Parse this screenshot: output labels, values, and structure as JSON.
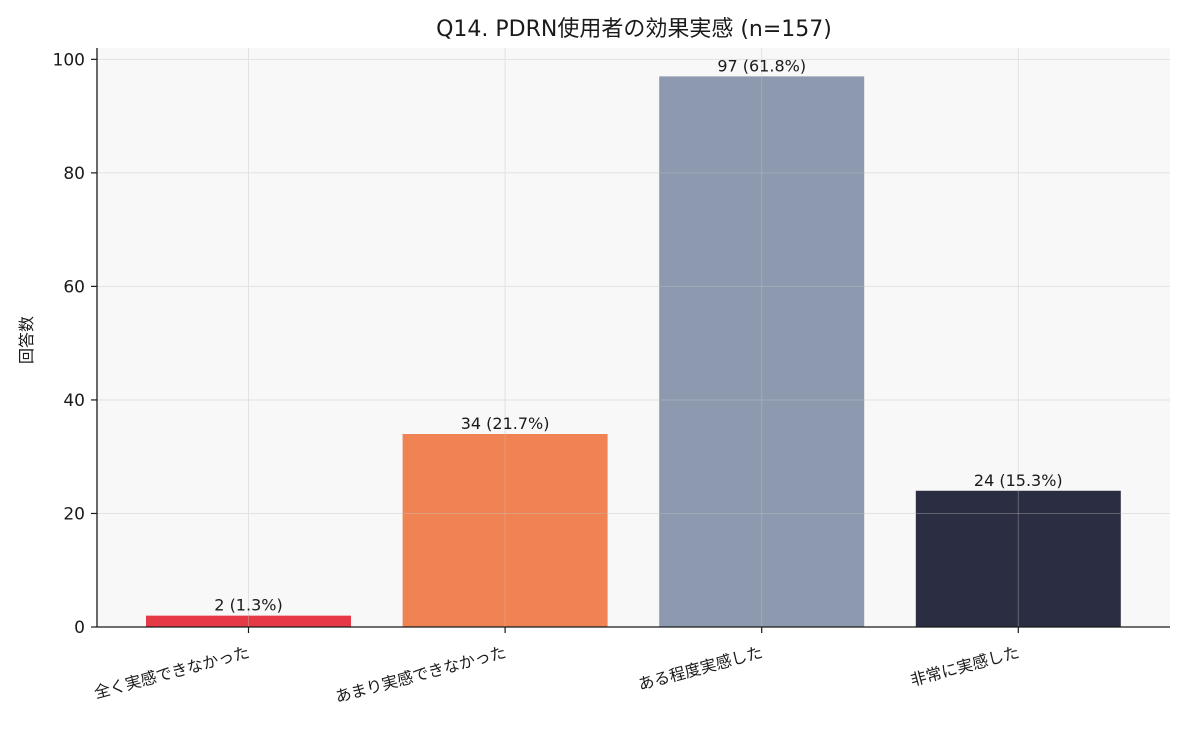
{
  "chart_data": {
    "type": "bar",
    "title": "Q14. PDRN使用者の効果実感 (n=157)",
    "xlabel": "",
    "ylabel": "回答数",
    "categories": [
      "全く実感できなかった",
      "あまり実感できなかった",
      "ある程度実感した",
      "非常に実感した"
    ],
    "values": [
      2,
      34,
      97,
      24
    ],
    "data_labels": [
      "2 (1.3%)",
      "34 (21.7%)",
      "97 (61.8%)",
      "24 (15.3%)"
    ],
    "colors": [
      "#e63946",
      "#ef8354",
      "#8d99ae",
      "#2b2d42"
    ],
    "ylim": [
      0,
      102
    ],
    "yticks": [
      0,
      20,
      40,
      60,
      80,
      100
    ],
    "grid": true,
    "legend": "none",
    "plot_background": "#f8f8f8",
    "x_tick_rotation_deg": 15
  }
}
